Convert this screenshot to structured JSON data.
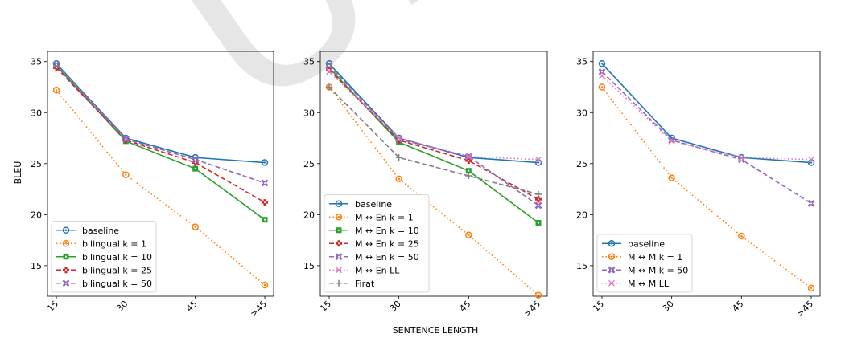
{
  "figure": {
    "ylabel": "BLEU",
    "xlabel": "SENTENCE LENGTH",
    "watermark": "Un"
  },
  "chart_data": [
    {
      "type": "line",
      "categories": [
        "15",
        "30",
        "45",
        ">45"
      ],
      "ylim": [
        12,
        36
      ],
      "yticks": [
        15,
        20,
        25,
        30,
        35
      ],
      "legend_position": "lower-left",
      "series": [
        {
          "name": "baseline",
          "values": [
            34.8,
            27.5,
            25.6,
            25.1
          ],
          "color": "#1f77b4",
          "dash": "solid",
          "marker": "circle-dot"
        },
        {
          "name": "bilingual k = 1",
          "values": [
            32.2,
            23.9,
            18.8,
            13.1
          ],
          "color": "#ff7f0e",
          "dash": "dotted",
          "marker": "circle-dot"
        },
        {
          "name": "bilingual k = 10",
          "values": [
            34.6,
            27.2,
            24.5,
            19.5
          ],
          "color": "#2ca02c",
          "dash": "solid",
          "marker": "square-dot"
        },
        {
          "name": "bilingual k = 25",
          "values": [
            34.4,
            27.3,
            25.1,
            21.2
          ],
          "color": "#d62728",
          "dash": "dashed",
          "marker": "plus-dot"
        },
        {
          "name": "bilingual k = 50",
          "values": [
            34.7,
            27.4,
            25.4,
            23.1
          ],
          "color": "#9467bd",
          "dash": "dashed",
          "marker": "x-dot"
        }
      ]
    },
    {
      "type": "line",
      "categories": [
        "15",
        "30",
        "45",
        ">45"
      ],
      "ylim": [
        12,
        36
      ],
      "yticks": [
        15,
        20,
        25,
        30,
        35
      ],
      "legend_position": "lower-left",
      "series": [
        {
          "name": "baseline",
          "values": [
            34.8,
            27.5,
            25.6,
            25.1
          ],
          "color": "#1f77b4",
          "dash": "solid",
          "marker": "circle-dot"
        },
        {
          "name": "M ↔ En  k = 1",
          "values": [
            32.5,
            23.5,
            18.0,
            12.1
          ],
          "color": "#ff7f0e",
          "dash": "dotted",
          "marker": "circle-dot"
        },
        {
          "name": "M ↔ En  k = 10",
          "values": [
            34.4,
            27.1,
            24.3,
            19.2
          ],
          "color": "#2ca02c",
          "dash": "solid",
          "marker": "square-dot"
        },
        {
          "name": "M ↔ En  k = 25",
          "values": [
            34.2,
            27.3,
            25.3,
            21.5
          ],
          "color": "#d62728",
          "dash": "dashed",
          "marker": "plus-dot"
        },
        {
          "name": "M ↔ En  k = 50",
          "values": [
            34.6,
            27.4,
            25.7,
            20.9
          ],
          "color": "#9467bd",
          "dash": "dashed",
          "marker": "x-dot"
        },
        {
          "name": "M ↔ En  LL",
          "values": [
            34.0,
            27.5,
            25.7,
            25.4
          ],
          "color": "#e377c2",
          "dash": "dotted",
          "marker": "x"
        },
        {
          "name": "Firat",
          "values": [
            32.5,
            25.6,
            23.8,
            22.0
          ],
          "color": "#7f7f7f",
          "dash": "dashed",
          "marker": "plus"
        }
      ]
    },
    {
      "type": "line",
      "categories": [
        "15",
        "30",
        "45",
        ">45"
      ],
      "ylim": [
        12,
        36
      ],
      "yticks": [
        15,
        20,
        25,
        30,
        35
      ],
      "legend_position": "lower-left",
      "series": [
        {
          "name": "baseline",
          "values": [
            34.8,
            27.5,
            25.6,
            25.1
          ],
          "color": "#1f77b4",
          "dash": "solid",
          "marker": "circle-dot"
        },
        {
          "name": "M ↔ M  k = 1",
          "values": [
            32.5,
            23.6,
            17.9,
            12.8
          ],
          "color": "#ff7f0e",
          "dash": "dotted",
          "marker": "circle-dot"
        },
        {
          "name": "M ↔ M  k = 50",
          "values": [
            34.0,
            27.3,
            25.4,
            21.1
          ],
          "color": "#9467bd",
          "dash": "dashed",
          "marker": "x-dot"
        },
        {
          "name": "M ↔ M  LL",
          "values": [
            33.6,
            27.2,
            25.6,
            25.4
          ],
          "color": "#e377c2",
          "dash": "dotted",
          "marker": "x"
        }
      ]
    }
  ]
}
